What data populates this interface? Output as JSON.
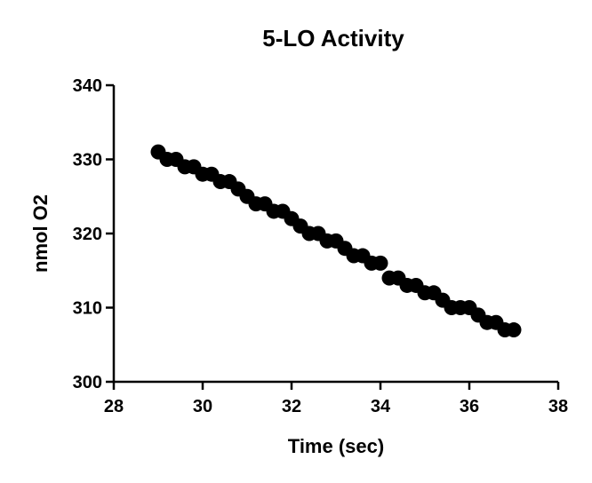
{
  "chart_data": {
    "type": "scatter",
    "title": "5-LO Activity",
    "xlabel": "Time (sec)",
    "ylabel": "nmol O2",
    "xlim": [
      28,
      38
    ],
    "ylim": [
      300,
      340
    ],
    "xticks": [
      28,
      30,
      32,
      34,
      36,
      38
    ],
    "yticks": [
      300,
      310,
      320,
      330,
      340
    ],
    "grid": false,
    "marker_color": "#000000",
    "series": [
      {
        "x": [
          29.0,
          29.2,
          29.4,
          29.6,
          29.8,
          30.0,
          30.2,
          30.4,
          30.6,
          30.8,
          31.0,
          31.2,
          31.4,
          31.6,
          31.8,
          32.0,
          32.2,
          32.4,
          32.6,
          32.8,
          33.0,
          33.2,
          33.4,
          33.6,
          33.8,
          34.0,
          34.2,
          34.4,
          34.6,
          34.8,
          35.0,
          35.2,
          35.4,
          35.6,
          35.8,
          36.0,
          36.2,
          36.4,
          36.6,
          36.8,
          37.0
        ],
        "y": [
          331,
          330,
          330,
          329,
          329,
          328,
          328,
          327,
          327,
          326,
          325,
          324,
          324,
          323,
          323,
          322,
          321,
          320,
          320,
          319,
          319,
          318,
          317,
          317,
          316,
          316,
          314,
          314,
          313,
          313,
          312,
          312,
          311,
          310,
          310,
          310,
          309,
          308,
          308,
          307,
          307
        ]
      }
    ]
  }
}
